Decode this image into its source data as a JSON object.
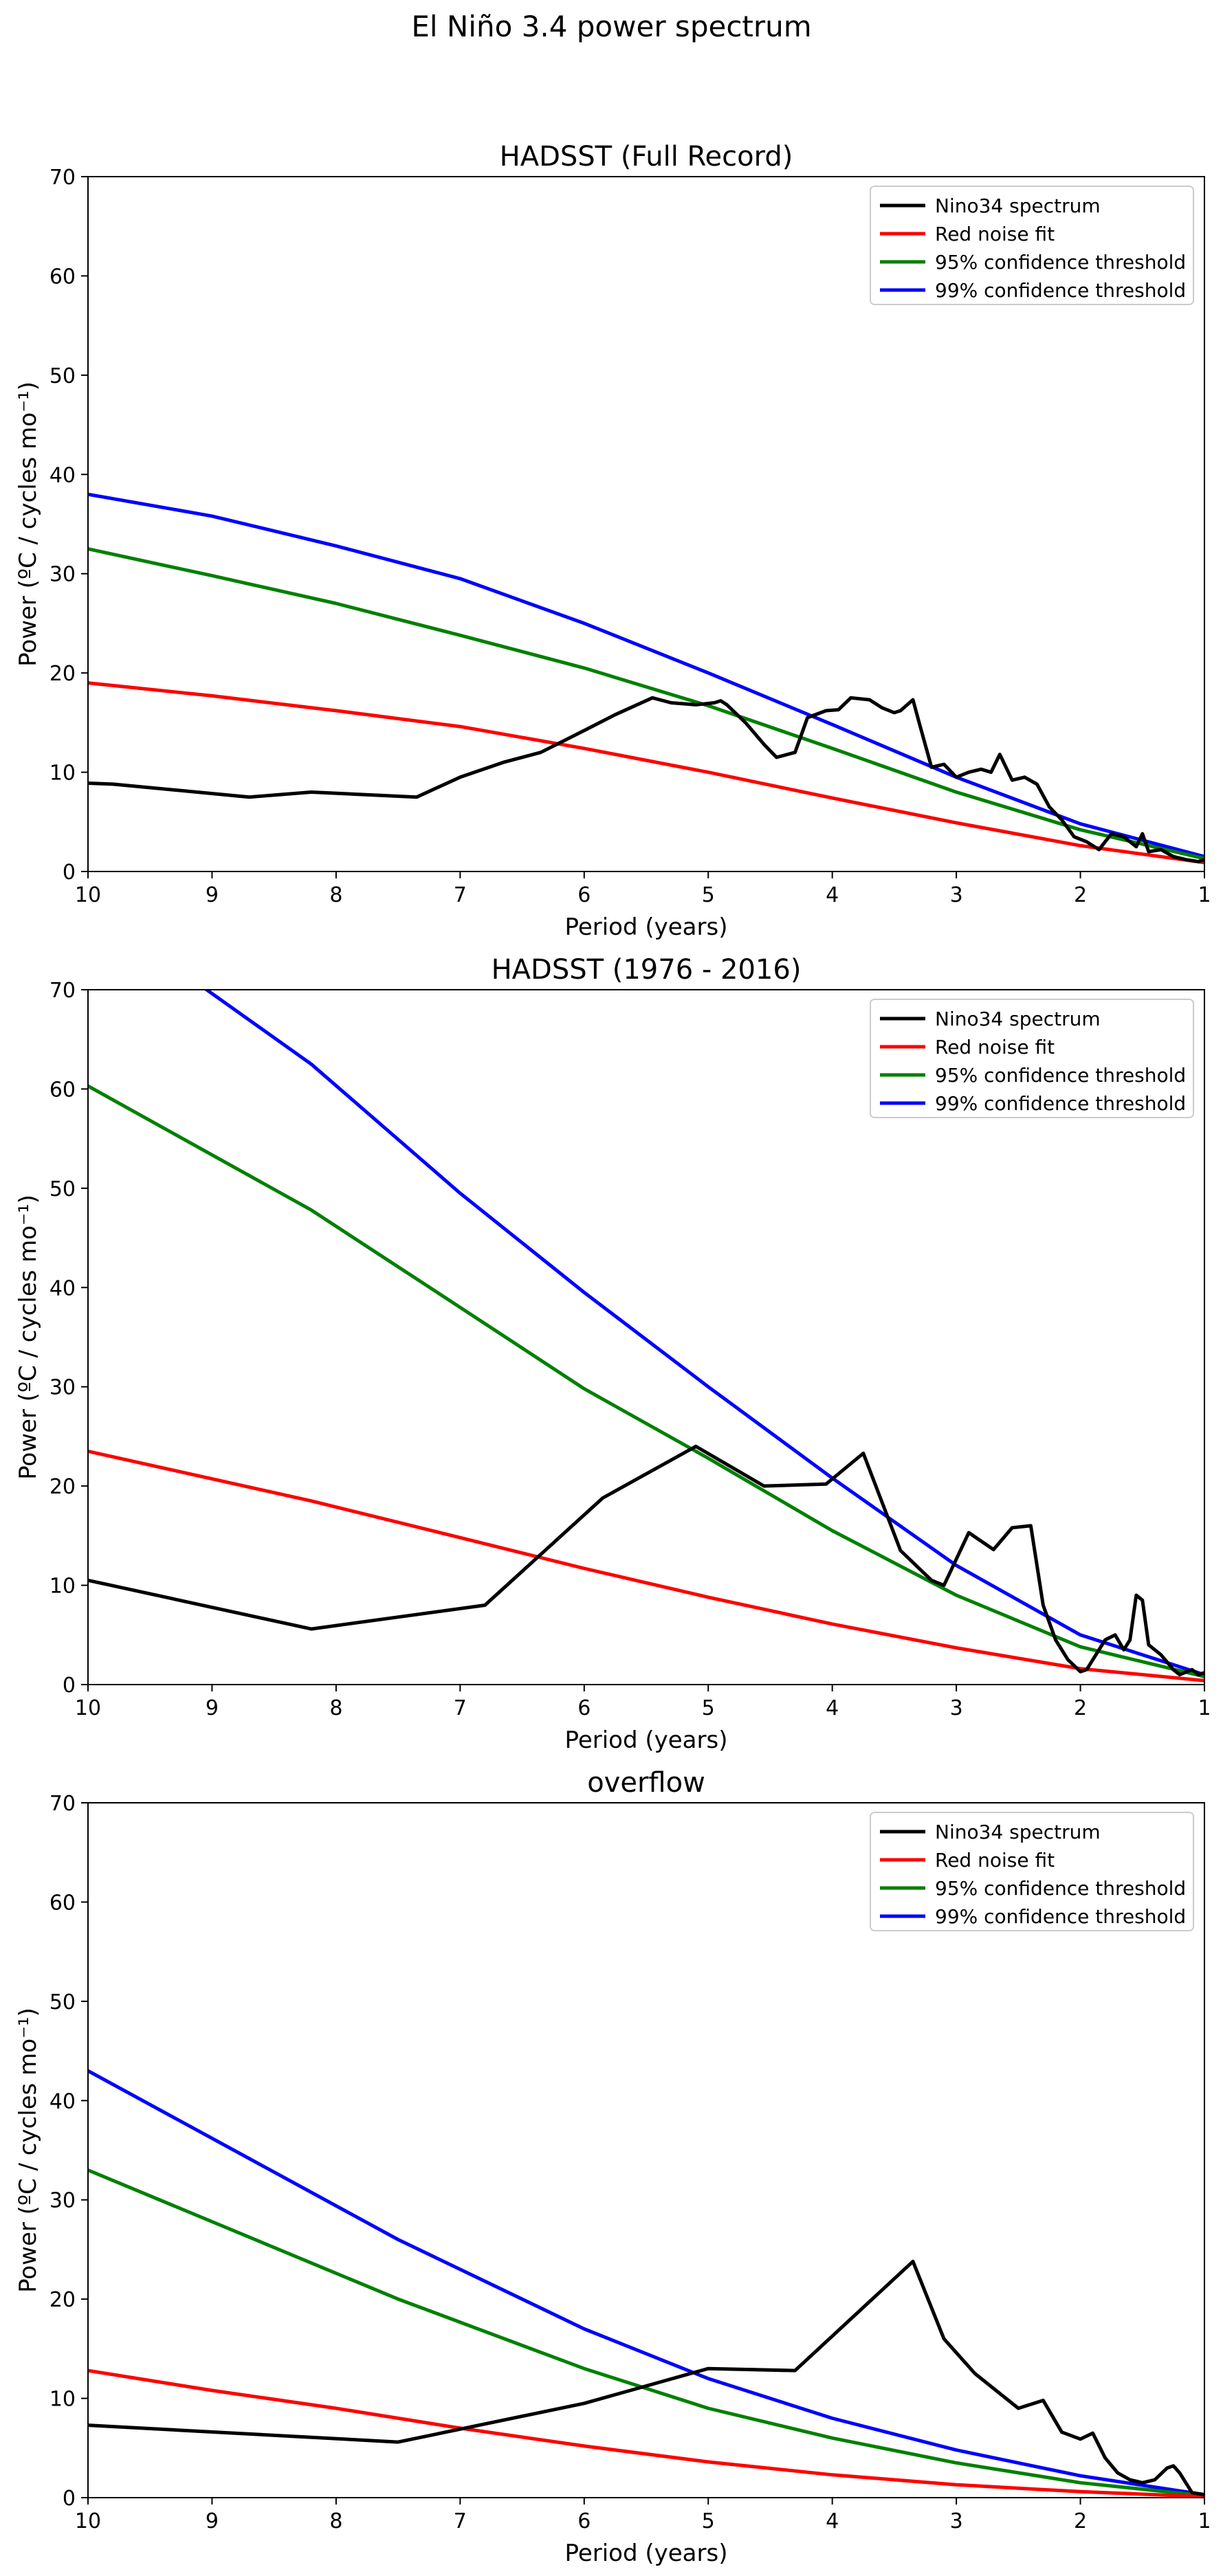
{
  "figure": {
    "suptitle": "El Niño 3.4 power spectrum"
  },
  "chart_data": [
    {
      "type": "line",
      "title": "HADSST (Full Record)",
      "xlabel": "Period (years)",
      "ylabel": "Power (ºC / cycles mo⁻¹)",
      "xlim": [
        10,
        1
      ],
      "ylim": [
        0,
        70
      ],
      "xticks": [
        "10",
        "9",
        "8",
        "7",
        "6",
        "5",
        "4",
        "3",
        "2",
        "1"
      ],
      "yticks": [
        "0",
        "10",
        "20",
        "30",
        "40",
        "50",
        "60",
        "70"
      ],
      "legend_position": "top-right",
      "series": [
        {
          "name": "Nino34 spectrum",
          "color": "#000000",
          "x": [
            10,
            9.8,
            8.7,
            8.2,
            7.35,
            7.0,
            6.65,
            6.35,
            6.0,
            5.75,
            5.45,
            5.3,
            5.1,
            4.95,
            4.9,
            4.85,
            4.7,
            4.55,
            4.45,
            4.3,
            4.2,
            4.05,
            3.95,
            3.85,
            3.7,
            3.6,
            3.5,
            3.45,
            3.35,
            3.3,
            3.2,
            3.1,
            3.0,
            2.9,
            2.8,
            2.72,
            2.65,
            2.55,
            2.45,
            2.35,
            2.25,
            2.15,
            2.05,
            1.95,
            1.85,
            1.75,
            1.65,
            1.55,
            1.5,
            1.45,
            1.35,
            1.25,
            1.15,
            1.05,
            1.0
          ],
          "y": [
            8.9,
            8.8,
            7.5,
            8.0,
            7.5,
            9.5,
            11.0,
            12.0,
            14.2,
            15.8,
            17.5,
            17.0,
            16.8,
            17.0,
            17.2,
            16.8,
            15.0,
            12.8,
            11.5,
            12.0,
            15.5,
            16.2,
            16.3,
            17.5,
            17.3,
            16.5,
            16.0,
            16.2,
            17.3,
            15.0,
            10.5,
            10.8,
            9.5,
            10.0,
            10.3,
            10.0,
            11.8,
            9.2,
            9.5,
            8.8,
            6.5,
            5.2,
            3.5,
            3.0,
            2.2,
            3.8,
            3.5,
            2.5,
            3.8,
            2.0,
            2.2,
            1.5,
            1.2,
            1.0,
            1.2
          ]
        },
        {
          "name": "Red noise fit",
          "color": "#ff0000",
          "x": [
            10,
            9,
            8,
            7,
            6,
            5,
            4,
            3,
            2,
            1
          ],
          "y": [
            19.0,
            17.7,
            16.2,
            14.6,
            12.4,
            10.0,
            7.4,
            4.9,
            2.6,
            0.9
          ]
        },
        {
          "name": "95% confidence threshold",
          "color": "#008000",
          "x": [
            10,
            9,
            8,
            7,
            6,
            5,
            4,
            3,
            2,
            1
          ],
          "y": [
            32.5,
            29.8,
            27.0,
            23.8,
            20.5,
            16.7,
            12.4,
            8.0,
            4.2,
            1.3
          ]
        },
        {
          "name": "99% confidence threshold",
          "color": "#0000ff",
          "x": [
            10,
            9,
            8,
            7,
            6,
            5,
            4,
            3,
            2,
            1
          ],
          "y": [
            38.0,
            35.8,
            32.8,
            29.5,
            25.0,
            20.0,
            14.8,
            9.5,
            4.8,
            1.5
          ]
        }
      ]
    },
    {
      "type": "line",
      "title": "HADSST (1976 - 2016)",
      "xlabel": "Period (years)",
      "ylabel": "Power (ºC / cycles mo⁻¹)",
      "xlim": [
        10,
        1
      ],
      "ylim": [
        0,
        70
      ],
      "xticks": [
        "10",
        "9",
        "8",
        "7",
        "6",
        "5",
        "4",
        "3",
        "2",
        "1"
      ],
      "yticks": [
        "0",
        "10",
        "20",
        "30",
        "40",
        "50",
        "60",
        "70"
      ],
      "legend_position": "top-right",
      "series": [
        {
          "name": "Nino34 spectrum",
          "color": "#000000",
          "x": [
            10,
            8.2,
            6.8,
            5.85,
            5.1,
            4.55,
            4.05,
            3.75,
            3.45,
            3.2,
            3.1,
            2.9,
            2.7,
            2.55,
            2.4,
            2.3,
            2.2,
            2.1,
            2.0,
            1.95,
            1.9,
            1.8,
            1.72,
            1.65,
            1.6,
            1.55,
            1.5,
            1.45,
            1.35,
            1.25,
            1.2,
            1.1,
            1.05,
            1.0
          ],
          "y": [
            10.5,
            5.6,
            8.0,
            18.8,
            24.0,
            20.0,
            20.2,
            23.3,
            13.5,
            10.5,
            10.0,
            15.3,
            13.6,
            15.8,
            16.0,
            8.0,
            4.5,
            2.5,
            1.3,
            1.5,
            2.5,
            4.5,
            5.0,
            3.5,
            4.5,
            9.0,
            8.5,
            4.0,
            3.0,
            1.5,
            1.0,
            1.5,
            1.0,
            1.2
          ]
        },
        {
          "name": "Red noise fit",
          "color": "#ff0000",
          "x": [
            10,
            8.2,
            7,
            6,
            5,
            4,
            3,
            2,
            1
          ],
          "y": [
            23.5,
            18.5,
            14.8,
            11.7,
            8.8,
            6.1,
            3.7,
            1.6,
            0.4
          ]
        },
        {
          "name": "95% confidence threshold",
          "color": "#008000",
          "x": [
            10,
            8.2,
            7,
            6,
            5,
            4,
            3,
            2,
            1
          ],
          "y": [
            60.3,
            47.8,
            38.0,
            29.8,
            22.8,
            15.5,
            9.0,
            3.8,
            0.8
          ]
        },
        {
          "name": "99% confidence threshold",
          "color": "#0000ff",
          "x": [
            9.1,
            8.2,
            7,
            6,
            5,
            4,
            3,
            2,
            1
          ],
          "y": [
            70.5,
            62.5,
            49.5,
            39.5,
            30.0,
            20.8,
            12.0,
            5.0,
            1.0
          ]
        }
      ]
    },
    {
      "type": "line",
      "title": "overflow",
      "xlabel": "Period (years)",
      "ylabel": "Power (ºC / cycles mo⁻¹)",
      "xlim": [
        10,
        1
      ],
      "ylim": [
        0,
        70
      ],
      "xticks": [
        "10",
        "9",
        "8",
        "7",
        "6",
        "5",
        "4",
        "3",
        "2",
        "1"
      ],
      "yticks": [
        "0",
        "10",
        "20",
        "30",
        "40",
        "50",
        "60",
        "70"
      ],
      "legend_position": "top-right",
      "series": [
        {
          "name": "Nino34 spectrum",
          "color": "#000000",
          "x": [
            10,
            7.5,
            6,
            5,
            4.3,
            3.35,
            3.1,
            2.85,
            2.5,
            2.3,
            2.15,
            2.0,
            1.9,
            1.8,
            1.7,
            1.6,
            1.5,
            1.4,
            1.3,
            1.25,
            1.2,
            1.1,
            1.0
          ],
          "y": [
            7.3,
            5.6,
            9.5,
            13.0,
            12.8,
            23.8,
            16.0,
            12.5,
            9.0,
            9.8,
            6.6,
            5.9,
            6.5,
            4.0,
            2.5,
            1.8,
            1.5,
            1.8,
            3.0,
            3.2,
            2.5,
            0.5,
            0.3
          ]
        },
        {
          "name": "Red noise fit",
          "color": "#ff0000",
          "x": [
            10,
            9,
            8,
            7,
            6,
            5,
            4,
            3,
            2,
            1
          ],
          "y": [
            12.8,
            10.8,
            9.0,
            7.0,
            5.2,
            3.6,
            2.3,
            1.3,
            0.6,
            0.1
          ]
        },
        {
          "name": "95% confidence threshold",
          "color": "#008000",
          "x": [
            10,
            7.5,
            6,
            5,
            4,
            3,
            2,
            1
          ],
          "y": [
            33.0,
            20.0,
            13.0,
            9.0,
            6.0,
            3.5,
            1.5,
            0.2
          ]
        },
        {
          "name": "99% confidence threshold",
          "color": "#0000ff",
          "x": [
            10,
            7.5,
            6,
            5,
            4,
            3,
            2,
            1
          ],
          "y": [
            43.0,
            26.0,
            17.0,
            12.0,
            8.0,
            4.8,
            2.2,
            0.3
          ]
        }
      ]
    }
  ]
}
